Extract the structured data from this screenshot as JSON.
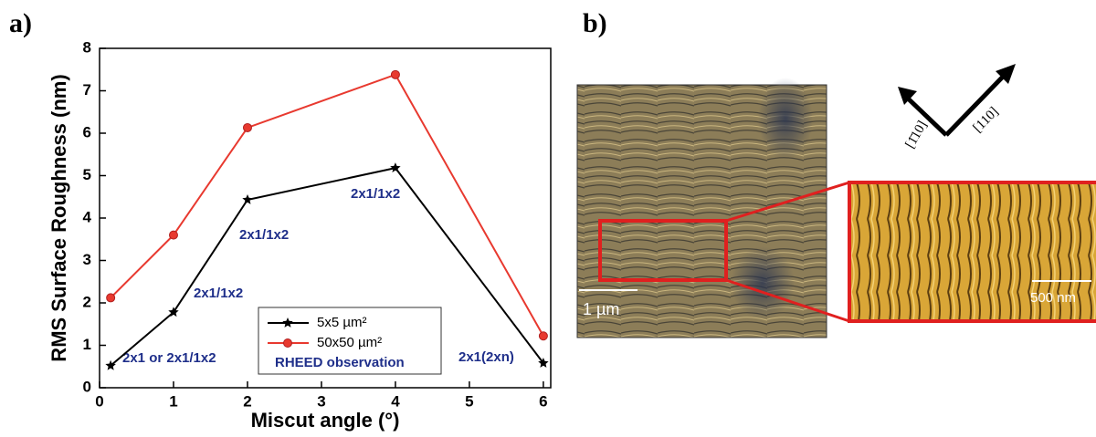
{
  "panel_labels": [
    "a)",
    "b)"
  ],
  "chart_data": {
    "type": "line",
    "x_label": "Miscut angle (°)",
    "y_label": "RMS Surface Roughness (nm)",
    "x": [
      0.15,
      1,
      2,
      4,
      6
    ],
    "series": [
      {
        "name": "5x5 µm²",
        "color": "#000000",
        "marker": "star",
        "values": [
          0.52,
          1.78,
          4.43,
          5.18,
          0.58
        ]
      },
      {
        "name": "50x50 µm²",
        "color": "#e8392f",
        "marker": "circle",
        "values": [
          2.12,
          3.6,
          6.13,
          7.38,
          1.22
        ]
      }
    ],
    "xlim": [
      0,
      6.1
    ],
    "xticks": [
      0,
      1,
      2,
      3,
      4,
      5,
      6
    ],
    "ylim": [
      0,
      8
    ],
    "yticks": [
      0,
      1,
      2,
      3,
      4,
      5,
      6,
      7,
      8
    ],
    "legend": "bottom",
    "legend_note": "RHEED observation",
    "annotations": [
      "2x1 or 2x1/1x2",
      "2x1/1x2",
      "2x1/1x2",
      "2x1/1x2",
      "2x1(2xn)"
    ],
    "annotation_color": "#1f2f8a"
  },
  "afm": {
    "scale_bar": "1 µm",
    "zoom_scale_bar": "500 nm",
    "directions": [
      "[1̄10]",
      "[110]"
    ]
  }
}
